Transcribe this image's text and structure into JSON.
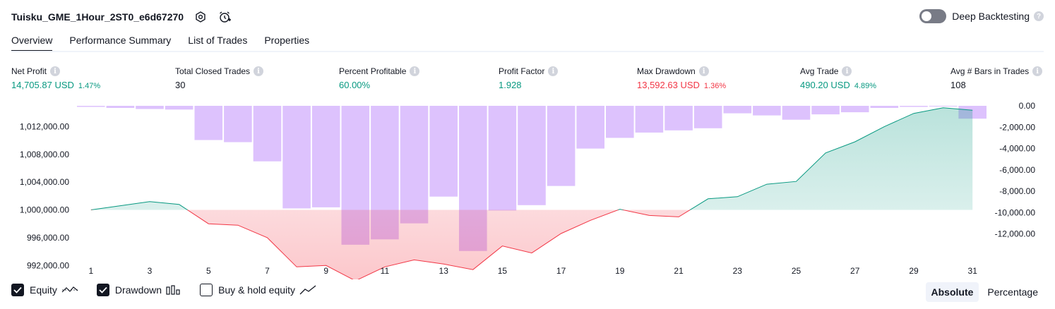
{
  "header": {
    "title": "Tuisku_GME_1Hour_2ST0_e6d67270",
    "deep_backtesting_label": "Deep Backtesting"
  },
  "tabs": [
    {
      "label": "Overview",
      "active": true
    },
    {
      "label": "Performance Summary",
      "active": false
    },
    {
      "label": "List of Trades",
      "active": false
    },
    {
      "label": "Properties",
      "active": false
    }
  ],
  "metrics": [
    {
      "label": "Net Profit",
      "value": "14,705.87 USD",
      "pct": "1.47%",
      "color": "#089981"
    },
    {
      "label": "Total Closed Trades",
      "value": "30",
      "pct": "",
      "color": "#131722"
    },
    {
      "label": "Percent Profitable",
      "value": "60.00%",
      "pct": "",
      "color": "#089981"
    },
    {
      "label": "Profit Factor",
      "value": "1.928",
      "pct": "",
      "color": "#089981"
    },
    {
      "label": "Max Drawdown",
      "value": "13,592.63 USD",
      "pct": "1.36%",
      "color": "#f23645"
    },
    {
      "label": "Avg Trade",
      "value": "490.20 USD",
      "pct": "4.89%",
      "color": "#089981"
    },
    {
      "label": "Avg # Bars in Trades",
      "value": "108",
      "pct": "",
      "color": "#131722"
    }
  ],
  "legend": {
    "equity_label": "Equity",
    "drawdown_label": "Drawdown",
    "buyhold_label": "Buy & hold equity",
    "equity_checked": true,
    "drawdown_checked": true,
    "buyhold_checked": false
  },
  "modes": {
    "absolute_label": "Absolute",
    "percentage_label": "Percentage",
    "selected": "Absolute"
  },
  "chart_data": {
    "type": "line",
    "x": [
      1,
      2,
      3,
      4,
      5,
      6,
      7,
      8,
      9,
      10,
      11,
      12,
      13,
      14,
      15,
      16,
      17,
      18,
      19,
      20,
      21,
      22,
      23,
      24,
      25,
      26,
      27,
      28,
      29,
      30,
      31
    ],
    "x_tick_labels": [
      "1",
      "3",
      "5",
      "7",
      "9",
      "11",
      "13",
      "15",
      "17",
      "19",
      "21",
      "23",
      "25",
      "27",
      "29",
      "31"
    ],
    "equity": {
      "baseline": 1000000,
      "values": [
        1000000,
        1000600,
        1001200,
        1000800,
        998000,
        997800,
        996000,
        991800,
        992000,
        989800,
        991800,
        992800,
        992200,
        991400,
        994800,
        993800,
        996600,
        998500,
        1000100,
        999200,
        999000,
        1001600,
        1001900,
        1003700,
        1004100,
        1008200,
        1009800,
        1012000,
        1013900,
        1014700,
        1014350
      ],
      "y_tick_labels": [
        "1,012,000.00",
        "1,008,000.00",
        "1,004,000.00",
        "1,000,000.00",
        "996,000.00",
        "992,000.00"
      ],
      "ylim": [
        990000,
        1016000
      ],
      "pos_color": "#089981",
      "neg_color": "#f23645"
    },
    "drawdown": {
      "values": [
        -100,
        -200,
        -300,
        -350,
        -3200,
        -3400,
        -5200,
        -9600,
        -9500,
        -13000,
        -12500,
        -11000,
        -8500,
        -13592,
        -9800,
        -9300,
        -7500,
        -4000,
        -3000,
        -2500,
        -2300,
        -2100,
        -700,
        -900,
        -1300,
        -800,
        -600,
        -200,
        -100,
        -1,
        -1200
      ],
      "y_tick_labels": [
        "0.00",
        "-2,000.00",
        "-4,000.00",
        "-6,000.00",
        "-8,000.00",
        "-10,000.00",
        "-12,000.00"
      ],
      "ylim": [
        -14000,
        0
      ],
      "color": "#c89cfc"
    }
  }
}
